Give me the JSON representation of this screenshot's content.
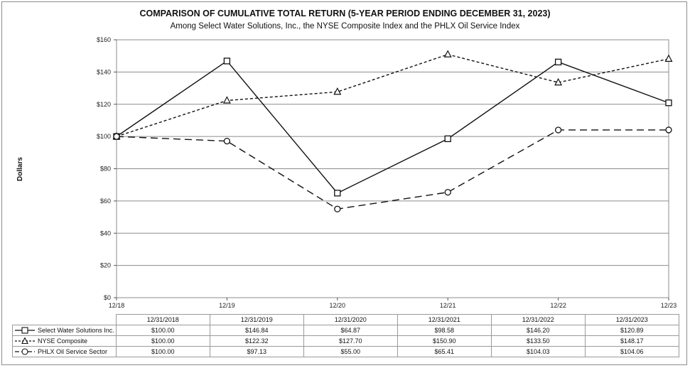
{
  "chart_data": {
    "type": "line",
    "title": "COMPARISON OF CUMULATIVE TOTAL RETURN (5-YEAR PERIOD ENDING DECEMBER 31, 2023)",
    "subtitle": "Among Select Water Solutions, Inc., the NYSE Composite Index and the PHLX Oil Service Index",
    "xlabel": "",
    "ylabel": "Dollars",
    "ylim": [
      0,
      160
    ],
    "yticks": [
      "$0",
      "$20",
      "$40",
      "$60",
      "$80",
      "$100",
      "$120",
      "$140",
      "$160"
    ],
    "x": [
      "12/18",
      "12/19",
      "12/20",
      "12/21",
      "12/22",
      "12/23"
    ],
    "table_headers": [
      "12/31/2018",
      "12/31/2019",
      "12/31/2020",
      "12/31/2021",
      "12/31/2022",
      "12/31/2023"
    ],
    "series": [
      {
        "name": "Select Water Solutions Inc.",
        "marker": "square",
        "dash": "solid",
        "values": [
          100.0,
          146.84,
          64.87,
          98.58,
          146.2,
          120.89
        ],
        "labels": [
          "$100.00",
          "$146.84",
          "$64.87",
          "$98.58",
          "$146.20",
          "$120.89"
        ]
      },
      {
        "name": "NYSE Composite",
        "marker": "triangle",
        "dash": "short",
        "values": [
          100.0,
          122.32,
          127.7,
          150.9,
          133.5,
          148.17
        ],
        "labels": [
          "$100.00",
          "$122.32",
          "$127.70",
          "$150.90",
          "$133.50",
          "$148.17"
        ]
      },
      {
        "name": "PHLX Oil Service Sector",
        "marker": "circle",
        "dash": "long",
        "values": [
          100.0,
          97.13,
          55.0,
          65.41,
          104.03,
          104.06
        ],
        "labels": [
          "$100.00",
          "$97.13",
          "$55.00",
          "$65.41",
          "$104.03",
          "$104.06"
        ]
      }
    ]
  }
}
